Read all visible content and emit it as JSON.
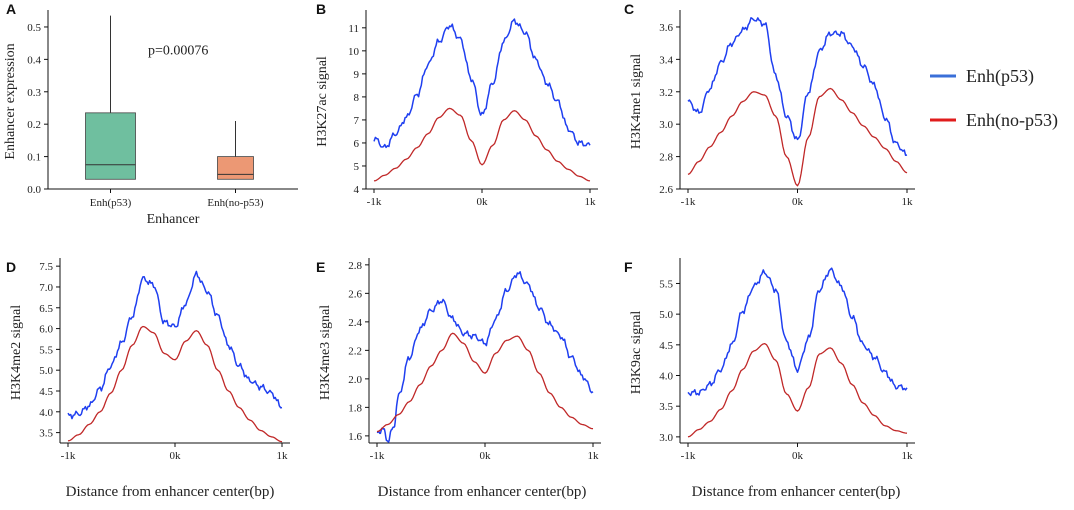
{
  "figure_labels": {
    "xlabel_common": "Distance from enhancer center(bp)"
  },
  "legend": {
    "items": [
      {
        "name": "Enh(p53)",
        "color": "#1f3ff0",
        "swatch": "#3a6fd8"
      },
      {
        "name": "Enh(no-p53)",
        "color": "#c02828",
        "swatch": "#e01c1c"
      }
    ]
  },
  "chart_data": [
    {
      "panel": "A",
      "type": "box",
      "xlabel": "Enhancer",
      "ylabel": "Enhancer expression",
      "ylim": [
        0,
        0.54
      ],
      "yticks": [
        0.0,
        0.1,
        0.2,
        0.3,
        0.4,
        0.5
      ],
      "ytick_labels": [
        "0.0",
        "0.1",
        "0.2",
        "0.3",
        "0.4",
        "0.5"
      ],
      "annotation": "p=0.00076",
      "boxes": [
        {
          "category": "Enh(p53)",
          "whisker_low": 0.03,
          "q1": 0.03,
          "median": 0.075,
          "q3": 0.235,
          "whisker_high": 0.535,
          "color": "#6fbf9f"
        },
        {
          "category": "Enh(no-p53)",
          "whisker_low": 0.03,
          "q1": 0.03,
          "median": 0.045,
          "q3": 0.1,
          "whisker_high": 0.21,
          "color": "#ec9874"
        }
      ]
    },
    {
      "panel": "B",
      "type": "line",
      "ylabel": "H3K27ac signal",
      "xlim": [
        -1000,
        1000
      ],
      "xticks": [
        -1000,
        0,
        1000
      ],
      "xtick_labels": [
        "-1k",
        "0k",
        "1k"
      ],
      "ylim": [
        4,
        11.6
      ],
      "yticks": [
        4,
        5,
        6,
        7,
        8,
        9,
        10,
        11
      ],
      "ytick_labels": [
        "4",
        "5",
        "6",
        "7",
        "8",
        "9",
        "10",
        "11"
      ],
      "series": [
        {
          "name": "Enh(p53)",
          "x": [
            -1000,
            -900,
            -800,
            -700,
            -600,
            -500,
            -400,
            -300,
            -200,
            -100,
            0,
            100,
            200,
            300,
            400,
            500,
            600,
            700,
            800,
            900,
            1000
          ],
          "y": [
            6.2,
            5.8,
            6.4,
            7.1,
            8.1,
            9.4,
            10.4,
            11.1,
            10.5,
            8.8,
            7.2,
            8.6,
            10.4,
            11.3,
            10.8,
            9.6,
            8.6,
            7.8,
            6.6,
            6.0,
            5.9
          ]
        },
        {
          "name": "Enh(no-p53)",
          "x": [
            -1000,
            -900,
            -800,
            -700,
            -600,
            -500,
            -400,
            -300,
            -200,
            -100,
            0,
            100,
            200,
            300,
            400,
            500,
            600,
            700,
            800,
            900,
            1000
          ],
          "y": [
            4.35,
            4.6,
            4.9,
            5.3,
            5.8,
            6.4,
            7.1,
            7.5,
            7.2,
            6.1,
            5.05,
            5.9,
            7.0,
            7.4,
            7.0,
            6.3,
            5.7,
            5.2,
            4.85,
            4.55,
            4.35
          ]
        }
      ]
    },
    {
      "panel": "C",
      "type": "line",
      "ylabel": "H3K4me1 signal",
      "xlim": [
        -1000,
        1000
      ],
      "xticks": [
        -1000,
        0,
        1000
      ],
      "xtick_labels": [
        "-1k",
        "0k",
        "1k"
      ],
      "ylim": [
        2.6,
        3.68
      ],
      "yticks": [
        2.6,
        2.8,
        3.0,
        3.2,
        3.4,
        3.6
      ],
      "ytick_labels": [
        "2.6",
        "2.8",
        "3.0",
        "3.2",
        "3.4",
        "3.6"
      ],
      "series": [
        {
          "name": "Enh(p53)",
          "x": [
            -1000,
            -900,
            -800,
            -700,
            -600,
            -500,
            -400,
            -300,
            -200,
            -100,
            0,
            100,
            200,
            300,
            400,
            500,
            600,
            700,
            800,
            900,
            1000
          ],
          "y": [
            3.14,
            3.07,
            3.22,
            3.38,
            3.5,
            3.58,
            3.65,
            3.62,
            3.3,
            3.05,
            2.9,
            3.2,
            3.45,
            3.56,
            3.56,
            3.48,
            3.36,
            3.24,
            3.04,
            2.88,
            2.81
          ]
        },
        {
          "name": "Enh(no-p53)",
          "x": [
            -1000,
            -900,
            -800,
            -700,
            -600,
            -500,
            -400,
            -300,
            -200,
            -100,
            0,
            100,
            200,
            300,
            400,
            500,
            600,
            700,
            800,
            900,
            1000
          ],
          "y": [
            2.69,
            2.77,
            2.86,
            2.95,
            3.05,
            3.14,
            3.2,
            3.18,
            3.05,
            2.8,
            2.62,
            2.92,
            3.17,
            3.22,
            3.15,
            3.07,
            2.99,
            2.92,
            2.85,
            2.77,
            2.7
          ]
        }
      ]
    },
    {
      "panel": "D",
      "type": "line",
      "ylabel": "H3K4me2 signal",
      "xlim": [
        -1000,
        1000
      ],
      "xticks": [
        -1000,
        0,
        1000
      ],
      "xtick_labels": [
        "-1k",
        "0k",
        "1k"
      ],
      "ylim": [
        3.25,
        7.6
      ],
      "yticks": [
        3.5,
        4.0,
        4.5,
        5.0,
        5.5,
        6.0,
        6.5,
        7.0,
        7.5
      ],
      "ytick_labels": [
        "3.5",
        "4.0",
        "4.5",
        "5.0",
        "5.5",
        "6.0",
        "6.5",
        "7.0",
        "7.5"
      ],
      "series": [
        {
          "name": "Enh(p53)",
          "x": [
            -1000,
            -900,
            -800,
            -700,
            -600,
            -500,
            -400,
            -300,
            -200,
            -100,
            0,
            100,
            200,
            300,
            400,
            500,
            600,
            700,
            800,
            900,
            1000
          ],
          "y": [
            3.9,
            3.95,
            4.15,
            4.55,
            5.1,
            5.65,
            6.3,
            7.2,
            7.05,
            6.15,
            6.05,
            6.6,
            7.3,
            6.9,
            6.3,
            5.6,
            5.1,
            4.75,
            4.6,
            4.45,
            4.1
          ]
        },
        {
          "name": "Enh(no-p53)",
          "x": [
            -1000,
            -900,
            -800,
            -700,
            -600,
            -500,
            -400,
            -300,
            -200,
            -100,
            0,
            100,
            200,
            300,
            400,
            500,
            600,
            700,
            800,
            900,
            1000
          ],
          "y": [
            3.3,
            3.45,
            3.7,
            4.0,
            4.45,
            5.0,
            5.6,
            6.05,
            5.9,
            5.4,
            5.25,
            5.7,
            5.95,
            5.6,
            5.0,
            4.5,
            4.1,
            3.8,
            3.55,
            3.4,
            3.28
          ]
        }
      ]
    },
    {
      "panel": "E",
      "type": "line",
      "ylabel": "H3K4me3 signal",
      "xlim": [
        -1000,
        1000
      ],
      "xticks": [
        -1000,
        0,
        1000
      ],
      "xtick_labels": [
        "-1k",
        "0k",
        "1k"
      ],
      "ylim": [
        1.55,
        2.82
      ],
      "yticks": [
        1.6,
        1.8,
        2.0,
        2.2,
        2.4,
        2.6,
        2.8
      ],
      "ytick_labels": [
        "1.6",
        "1.8",
        "2.0",
        "2.2",
        "2.4",
        "2.6",
        "2.8"
      ],
      "series": [
        {
          "name": "Enh(p53)",
          "x": [
            -1000,
            -950,
            -900,
            -850,
            -800,
            -700,
            -600,
            -500,
            -400,
            -300,
            -200,
            -100,
            0,
            100,
            200,
            300,
            400,
            500,
            600,
            700,
            800,
            900,
            1000
          ],
          "y": [
            1.62,
            1.65,
            1.57,
            1.65,
            1.88,
            2.15,
            2.35,
            2.48,
            2.55,
            2.42,
            2.32,
            2.3,
            2.25,
            2.42,
            2.62,
            2.74,
            2.66,
            2.5,
            2.38,
            2.3,
            2.15,
            2.02,
            1.91
          ]
        },
        {
          "name": "Enh(no-p53)",
          "x": [
            -1000,
            -900,
            -800,
            -700,
            -600,
            -500,
            -400,
            -300,
            -200,
            -100,
            0,
            100,
            200,
            300,
            400,
            500,
            600,
            700,
            800,
            900,
            1000
          ],
          "y": [
            1.63,
            1.68,
            1.75,
            1.84,
            1.96,
            2.09,
            2.2,
            2.32,
            2.25,
            2.12,
            2.04,
            2.18,
            2.27,
            2.3,
            2.2,
            2.04,
            1.9,
            1.8,
            1.73,
            1.68,
            1.65
          ]
        }
      ]
    },
    {
      "panel": "F",
      "type": "line",
      "ylabel": "H3K9ac signal",
      "xlim": [
        -1000,
        1000
      ],
      "xticks": [
        -1000,
        0,
        1000
      ],
      "xtick_labels": [
        "-1k",
        "0k",
        "1k"
      ],
      "ylim": [
        2.9,
        5.85
      ],
      "yticks": [
        3.0,
        3.5,
        4.0,
        4.5,
        5.0,
        5.5
      ],
      "ytick_labels": [
        "3.0",
        "3.5",
        "4.0",
        "4.5",
        "5.0",
        "5.5"
      ],
      "series": [
        {
          "name": "Enh(p53)",
          "x": [
            -1000,
            -900,
            -800,
            -700,
            -600,
            -500,
            -400,
            -300,
            -200,
            -100,
            0,
            100,
            200,
            300,
            400,
            500,
            600,
            700,
            800,
            900,
            1000
          ],
          "y": [
            3.72,
            3.72,
            3.85,
            4.1,
            4.5,
            5.05,
            5.45,
            5.68,
            5.4,
            4.55,
            4.1,
            4.6,
            5.4,
            5.72,
            5.45,
            4.95,
            4.5,
            4.3,
            4.05,
            3.82,
            3.8
          ]
        },
        {
          "name": "Enh(no-p53)",
          "x": [
            -1000,
            -900,
            -800,
            -700,
            -600,
            -500,
            -400,
            -300,
            -200,
            -100,
            0,
            100,
            200,
            300,
            400,
            500,
            600,
            700,
            800,
            900,
            1000
          ],
          "y": [
            3.0,
            3.12,
            3.25,
            3.45,
            3.75,
            4.1,
            4.4,
            4.52,
            4.25,
            3.7,
            3.42,
            3.8,
            4.35,
            4.45,
            4.2,
            3.85,
            3.55,
            3.35,
            3.18,
            3.1,
            3.06
          ]
        }
      ]
    }
  ]
}
